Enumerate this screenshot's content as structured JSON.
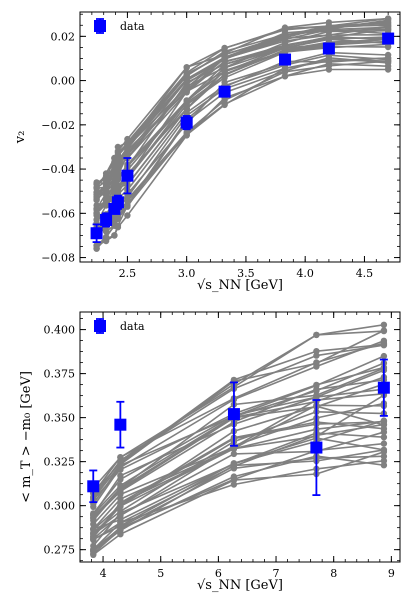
{
  "chart_data": [
    {
      "type": "line",
      "xlabel": "√s_NN [GeV]",
      "ylabel": "v₂",
      "xlim": [
        2.1,
        4.8
      ],
      "ylim": [
        -0.082,
        0.031
      ],
      "xticks": [
        2.5,
        3.0,
        3.5,
        4.0,
        4.5
      ],
      "xtick_labels": [
        "2.5",
        "3.0",
        "3.5",
        "4.0",
        "4.5"
      ],
      "yticks": [
        -0.08,
        -0.06,
        -0.04,
        -0.02,
        0.0,
        0.02
      ],
      "ytick_labels": [
        "−0.08",
        "−0.06",
        "−0.04",
        "−0.02",
        "0.00",
        "0.02"
      ],
      "legend": {
        "label": "data",
        "placement": "top-left"
      },
      "model_color": "#808080",
      "data_color": "#0000ff",
      "model_x": [
        2.24,
        2.32,
        2.39,
        2.42,
        2.5,
        3.0,
        3.32,
        3.83,
        4.2,
        4.7
      ],
      "model_band": {
        "low": [
          -0.076,
          -0.073,
          -0.07,
          -0.067,
          -0.061,
          -0.025,
          -0.011,
          0.002,
          0.005,
          0.005
        ],
        "high": [
          -0.046,
          -0.042,
          -0.035,
          -0.03,
          -0.023,
          0.006,
          0.016,
          0.024,
          0.027,
          0.028
        ]
      },
      "model_curve_count": 34,
      "data_points": [
        {
          "x": 2.24,
          "y": -0.069,
          "yerr": 0.004
        },
        {
          "x": 2.32,
          "y": -0.063,
          "yerr": 0.003
        },
        {
          "x": 2.39,
          "y": -0.058,
          "yerr": 0.002
        },
        {
          "x": 2.42,
          "y": -0.055,
          "yerr": 0.003
        },
        {
          "x": 2.5,
          "y": -0.043,
          "yerr": 0.008
        },
        {
          "x": 3.0,
          "y": -0.019,
          "yerr": 0.003
        },
        {
          "x": 3.32,
          "y": -0.005,
          "yerr": 0.001
        },
        {
          "x": 3.83,
          "y": 0.0095,
          "yerr": 0.001
        },
        {
          "x": 4.2,
          "y": 0.0145,
          "yerr": 0.001
        },
        {
          "x": 4.7,
          "y": 0.019,
          "yerr": 0.001
        }
      ]
    },
    {
      "type": "line",
      "xlabel": "√s_NN [GeV]",
      "ylabel": "< m_T > −m₀ [GeV]",
      "xlim": [
        3.6,
        9.15
      ],
      "ylim": [
        0.268,
        0.41
      ],
      "xticks": [
        4,
        5,
        6,
        7,
        8,
        9
      ],
      "xtick_labels": [
        "4",
        "5",
        "6",
        "7",
        "8",
        "9"
      ],
      "yticks": [
        0.275,
        0.3,
        0.325,
        0.35,
        0.375,
        0.4
      ],
      "ytick_labels": [
        "0.275",
        "0.300",
        "0.325",
        "0.350",
        "0.375",
        "0.400"
      ],
      "legend": {
        "label": "data",
        "placement": "top-left"
      },
      "model_color": "#808080",
      "data_color": "#0000ff",
      "model_x": [
        3.83,
        4.3,
        6.27,
        7.7,
        8.87
      ],
      "model_band": {
        "low": [
          0.271,
          0.283,
          0.312,
          0.318,
          0.323
        ],
        "high": [
          0.31,
          0.331,
          0.375,
          0.397,
          0.405
        ]
      },
      "model_curve_count": 36,
      "data_points": [
        {
          "x": 3.83,
          "y": 0.311,
          "yerr": 0.009
        },
        {
          "x": 4.3,
          "y": 0.346,
          "yerr": 0.013
        },
        {
          "x": 6.27,
          "y": 0.352,
          "yerr": 0.018
        },
        {
          "x": 7.7,
          "y": 0.333,
          "yerr": 0.027
        },
        {
          "x": 8.87,
          "y": 0.367,
          "yerr": 0.016
        }
      ]
    }
  ]
}
